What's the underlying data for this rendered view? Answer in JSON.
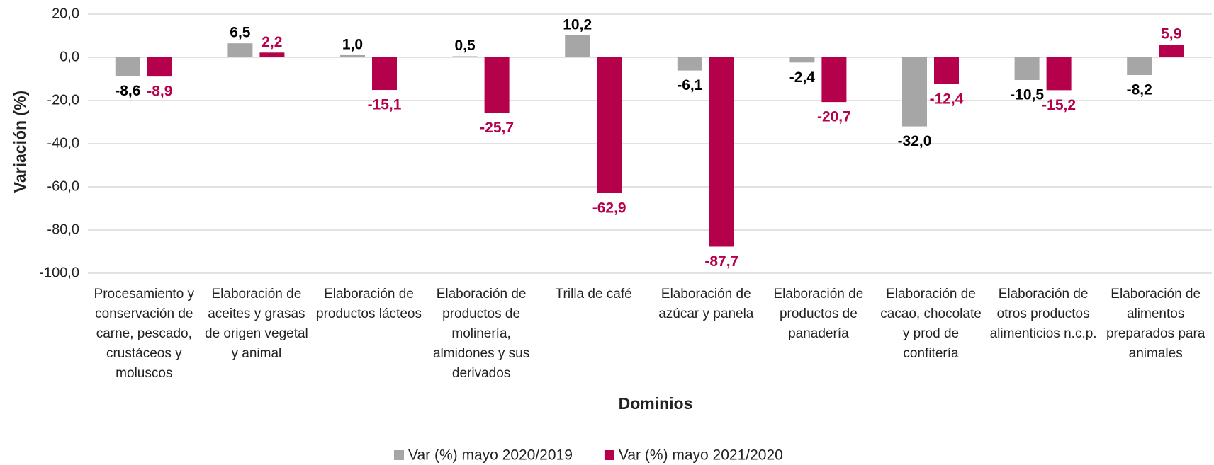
{
  "chart_data": {
    "type": "bar",
    "xlabel": "Dominios",
    "ylabel": "Variación (%)",
    "categories": [
      "Procesamiento y conservación de carne, pescado, crustáceos y moluscos",
      "Elaboración de aceites y grasas de origen vegetal y animal",
      "Elaboración de productos lácteos",
      "Elaboración de productos de molinería, almidones y sus derivados",
      "Trilla de café",
      "Elaboración de azúcar y panela",
      "Elaboración de productos de panadería",
      "Elaboración de cacao, chocolate y prod de confitería",
      "Elaboración de otros productos alimenticios n.c.p.",
      "Elaboración de alimentos preparados para animales"
    ],
    "series": [
      {
        "name": "Var (%) mayo 2020/2019",
        "color": "#a6a6a6",
        "label_color": "#000000",
        "values": [
          -8.6,
          6.5,
          1.0,
          0.5,
          10.2,
          -6.1,
          -2.4,
          -32.0,
          -10.5,
          -8.2
        ],
        "value_labels": [
          "-8,6",
          "6,5",
          "1,0",
          "0,5",
          "10,2",
          "-6,1",
          "-2,4",
          "-32,0",
          "-10,5",
          "-8,2"
        ]
      },
      {
        "name": "Var (%) mayo 2021/2020",
        "color": "#b5004b",
        "label_color": "#b5004b",
        "values": [
          -8.9,
          2.2,
          -15.1,
          -25.7,
          -62.9,
          -87.7,
          -20.7,
          -12.4,
          -15.2,
          5.9
        ],
        "value_labels": [
          "-8,9",
          "2,2",
          "-15,1",
          "-25,7",
          "-62,9",
          "-87,7",
          "-20,7",
          "-12,4",
          "-15,2",
          "5,9"
        ]
      }
    ],
    "ylim": [
      -100,
      20
    ],
    "yticks": [
      {
        "value": 20,
        "label": "20,0"
      },
      {
        "value": 0,
        "label": "0,0"
      },
      {
        "value": -20,
        "label": "-20,0"
      },
      {
        "value": -40,
        "label": "-40,0"
      },
      {
        "value": -60,
        "label": "-60,0"
      },
      {
        "value": -80,
        "label": "-80,0"
      },
      {
        "value": -100,
        "label": "-100,0"
      }
    ],
    "grid": true,
    "legend": "bottom"
  }
}
